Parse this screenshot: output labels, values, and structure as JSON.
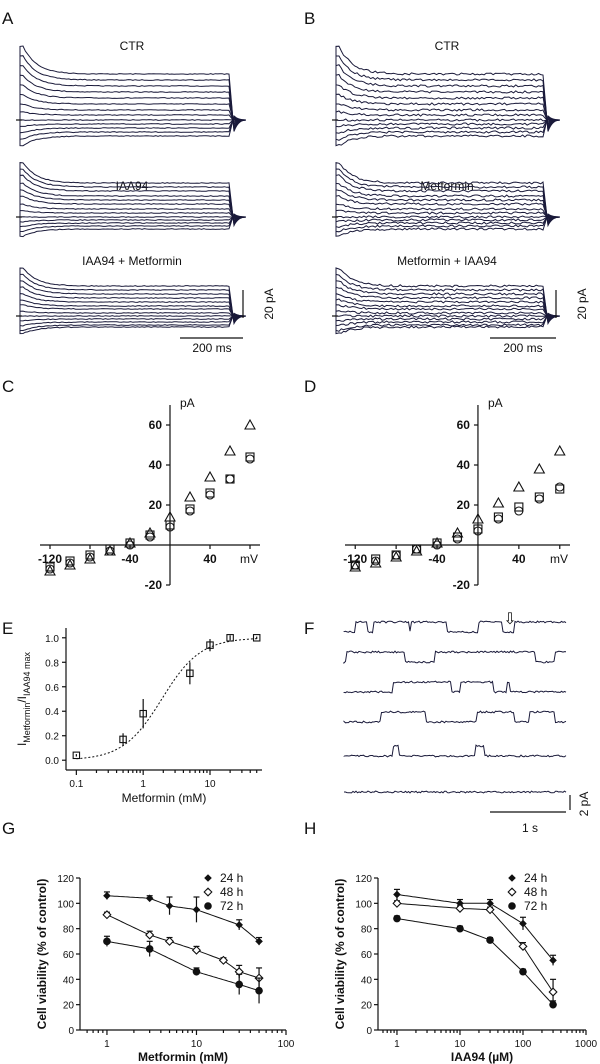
{
  "panels": {
    "A": "A",
    "B": "B",
    "C": "C",
    "D": "D",
    "E": "E",
    "F": "F",
    "G": "G",
    "H": "H"
  },
  "traces": {
    "A": [
      "CTR",
      "IAA94",
      "IAA94 + Metformin"
    ],
    "B": [
      "CTR",
      "Metformin",
      "Metformin + IAA94"
    ],
    "scale_current": "20 pA",
    "scale_time": "200 ms"
  },
  "iv_axes": {
    "y_unit": "pA",
    "x_unit": "mV",
    "y_ticks": [
      "60",
      "40",
      "20",
      "-20"
    ],
    "x_ticks": [
      "-120",
      "-40",
      "40"
    ]
  },
  "single_channel": {
    "scale_current": "2 pA",
    "scale_time": "1 s",
    "arrow": "⇩"
  },
  "colors": {
    "ink": "#111111",
    "trace": "#1a1a3a"
  },
  "chart_data": [
    {
      "panel": "C",
      "type": "scatter",
      "xlabel": "mV",
      "ylabel": "pA",
      "xlim": [
        -130,
        90
      ],
      "ylim": [
        -20,
        70
      ],
      "series": [
        {
          "marker": "circle",
          "x": [
            -120,
            -100,
            -80,
            -60,
            -40,
            -20,
            0,
            20,
            40,
            60,
            80
          ],
          "y": [
            -12,
            -9,
            -6,
            -3,
            0,
            4,
            9,
            17,
            25,
            33,
            43
          ]
        },
        {
          "marker": "square",
          "x": [
            -120,
            -100,
            -80,
            -60,
            -40,
            -20,
            0,
            20,
            40,
            60,
            80
          ],
          "y": [
            -11,
            -8,
            -5,
            -2,
            1,
            5,
            10,
            18,
            26,
            33,
            44
          ]
        },
        {
          "marker": "triangle",
          "x": [
            -120,
            -100,
            -80,
            -60,
            -40,
            -20,
            0,
            20,
            40,
            60,
            80
          ],
          "y": [
            -13,
            -10,
            -7,
            -3,
            1,
            6,
            14,
            24,
            34,
            47,
            60
          ]
        }
      ]
    },
    {
      "panel": "D",
      "type": "scatter",
      "xlabel": "mV",
      "ylabel": "pA",
      "xlim": [
        -130,
        90
      ],
      "ylim": [
        -20,
        70
      ],
      "series": [
        {
          "marker": "circle",
          "x": [
            -120,
            -100,
            -80,
            -60,
            -40,
            -20,
            0,
            20,
            40,
            60,
            80
          ],
          "y": [
            -10,
            -8,
            -5,
            -2,
            0,
            3,
            7,
            13,
            17,
            23,
            29
          ]
        },
        {
          "marker": "square",
          "x": [
            -120,
            -100,
            -80,
            -60,
            -40,
            -20,
            0,
            20,
            40,
            60,
            80
          ],
          "y": [
            -10,
            -7,
            -5,
            -2,
            1,
            4,
            8,
            14,
            19,
            24,
            28
          ]
        },
        {
          "marker": "triangle",
          "x": [
            -120,
            -100,
            -80,
            -60,
            -40,
            -20,
            0,
            20,
            40,
            60,
            80
          ],
          "y": [
            -11,
            -9,
            -6,
            -3,
            1,
            6,
            13,
            21,
            29,
            38,
            47
          ]
        }
      ]
    },
    {
      "panel": "E",
      "type": "scatter",
      "xlabel": "Metformin (mM)",
      "ylabel_main": "I",
      "ylabel_sub1": "Metformin",
      "ylabel_mid": "/I",
      "ylabel_sub2": "IAA94 max",
      "xscale": "log",
      "xlim": [
        0.07,
        60
      ],
      "ylim": [
        -0.08,
        1.08
      ],
      "x_ticks": [
        "0.1",
        "1",
        "10"
      ],
      "y_ticks": [
        "0.0",
        "0.2",
        "0.4",
        "0.6",
        "0.8",
        "1.0"
      ],
      "x": [
        0.1,
        0.5,
        1,
        5,
        10,
        20,
        50
      ],
      "y": [
        0.04,
        0.17,
        0.38,
        0.71,
        0.94,
        1.0,
        1.0
      ],
      "err": [
        0.01,
        0.05,
        0.12,
        0.09,
        0.05,
        0.02,
        0.01
      ],
      "fit": "dashed"
    },
    {
      "panel": "G",
      "type": "scatter",
      "xlabel": "Metformin (mM)",
      "ylabel": "Cell viability (% of control)",
      "xscale": "log",
      "xlim": [
        0.5,
        100
      ],
      "ylim": [
        0,
        120
      ],
      "x_ticks": [
        "1",
        "10",
        "100"
      ],
      "y_ticks": [
        "0",
        "20",
        "40",
        "60",
        "80",
        "100",
        "120"
      ],
      "series": [
        {
          "name": "24 h",
          "marker": "filled-diamond",
          "x": [
            1,
            3,
            5,
            10,
            30,
            50
          ],
          "y": [
            106,
            104,
            98,
            95,
            83,
            70
          ],
          "err": [
            3,
            2,
            7,
            10,
            4,
            3
          ]
        },
        {
          "name": "48 h",
          "marker": "open-diamond",
          "x": [
            1,
            3,
            5,
            10,
            20,
            30,
            50
          ],
          "y": [
            91,
            75,
            70,
            63,
            55,
            46,
            41
          ],
          "err": [
            2,
            3,
            3,
            3,
            2,
            5,
            8
          ]
        },
        {
          "name": "72 h",
          "marker": "filled-circle",
          "x": [
            1,
            3,
            10,
            30,
            50
          ],
          "y": [
            70,
            64,
            46,
            36,
            31
          ],
          "err": [
            4,
            6,
            3,
            8,
            10
          ]
        }
      ]
    },
    {
      "panel": "H",
      "type": "scatter",
      "xlabel": "IAA94 (µM)",
      "ylabel": "Cell viability (% of control)",
      "xscale": "log",
      "xlim": [
        0.5,
        1000
      ],
      "ylim": [
        0,
        120
      ],
      "x_ticks": [
        "1",
        "10",
        "100",
        "1000"
      ],
      "y_ticks": [
        "0",
        "20",
        "40",
        "60",
        "80",
        "100",
        "120"
      ],
      "series": [
        {
          "name": "24 h",
          "marker": "filled-diamond",
          "x": [
            1,
            10,
            30,
            100,
            300
          ],
          "y": [
            107,
            100,
            100,
            84,
            55
          ],
          "err": [
            4,
            3,
            3,
            5,
            4
          ]
        },
        {
          "name": "48 h",
          "marker": "open-diamond",
          "x": [
            1,
            10,
            30,
            100,
            300
          ],
          "y": [
            100,
            96,
            95,
            66,
            30
          ],
          "err": [
            2,
            2,
            2,
            3,
            10
          ]
        },
        {
          "name": "72 h",
          "marker": "filled-circle",
          "x": [
            1,
            10,
            30,
            100,
            300
          ],
          "y": [
            88,
            80,
            71,
            46,
            20
          ],
          "err": [
            2,
            2,
            2,
            2,
            3
          ]
        }
      ]
    }
  ]
}
